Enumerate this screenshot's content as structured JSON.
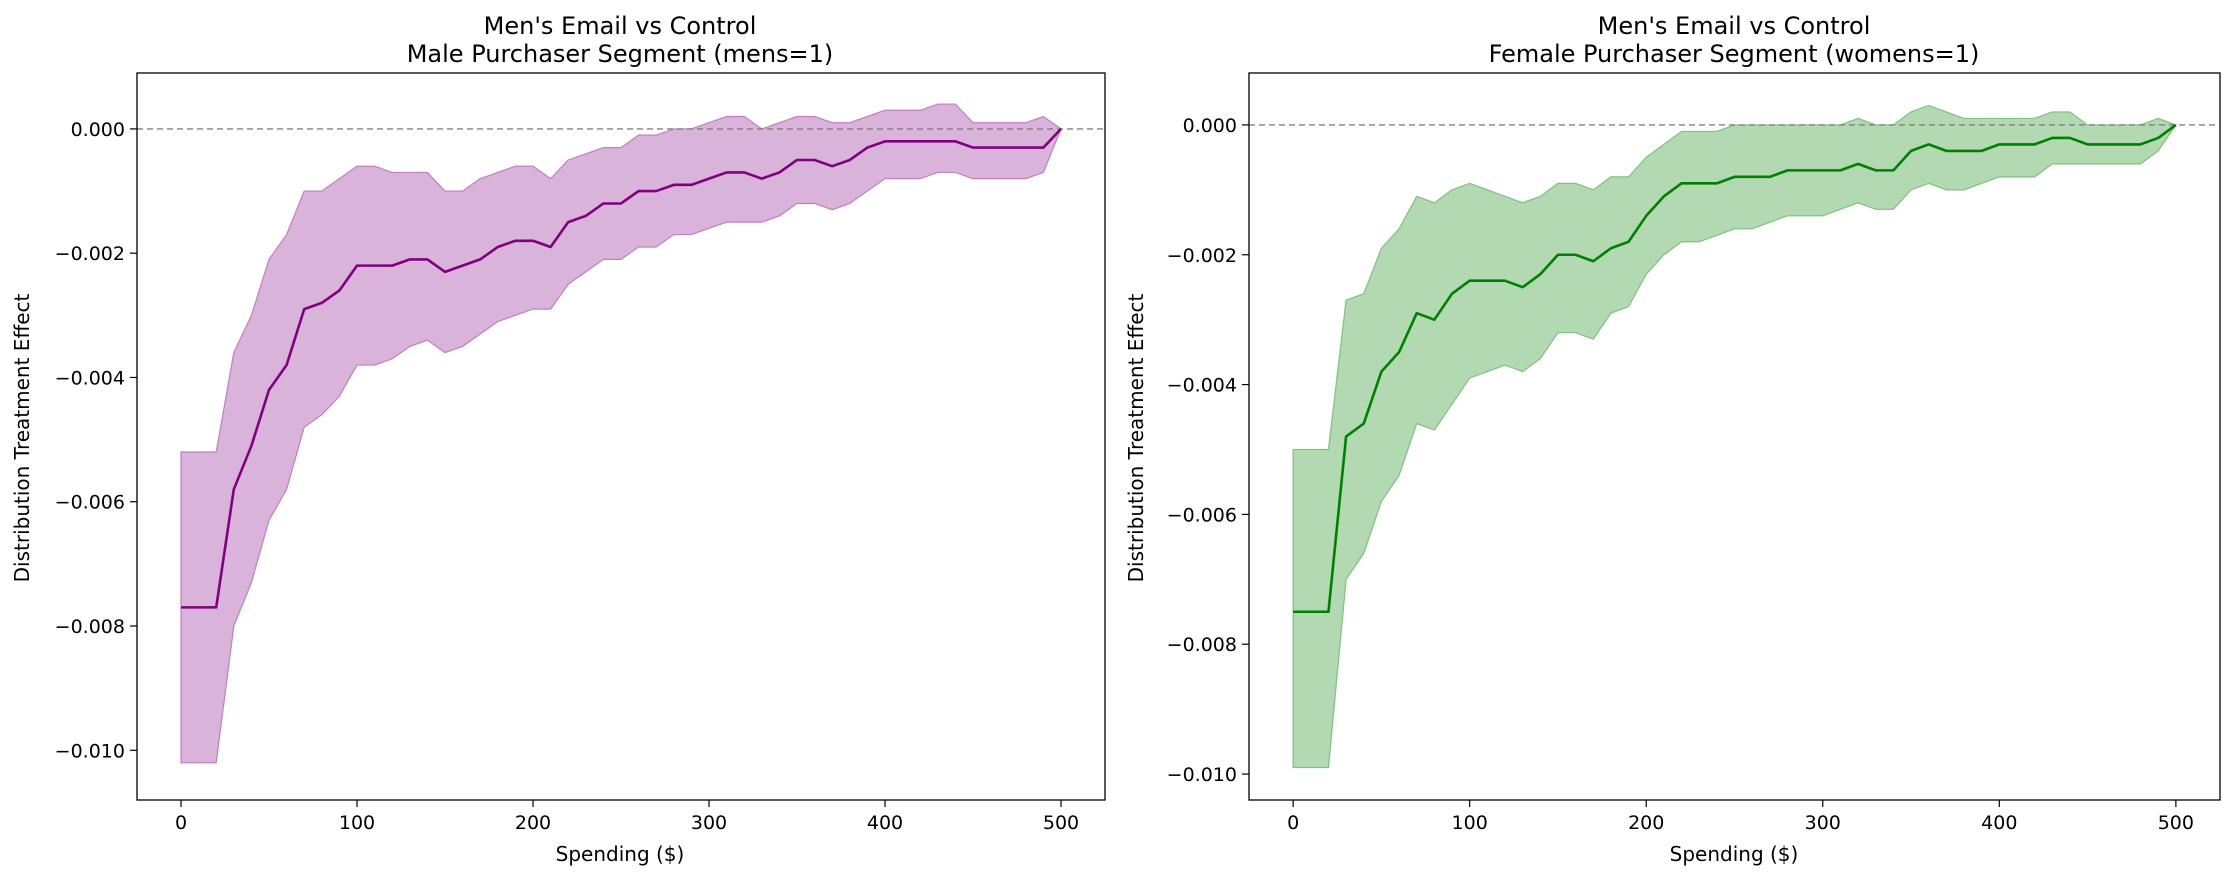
{
  "chart_data": [
    {
      "type": "line",
      "title": "Men's Email vs Control",
      "subtitle": "Male Purchaser Segment (mens=1)",
      "xlabel": "Spending ($)",
      "ylabel": "Distribution Treatment Effect",
      "xlim": [
        -25,
        525
      ],
      "ylim": [
        -0.0108,
        0.0009
      ],
      "xticks": [
        0,
        100,
        200,
        300,
        400,
        500
      ],
      "xtick_labels": [
        "0",
        "100",
        "200",
        "300",
        "400",
        "500"
      ],
      "yticks": [
        0.0,
        -0.002,
        -0.004,
        -0.006,
        -0.008,
        -0.01
      ],
      "ytick_labels": [
        "0.000",
        "−0.002",
        "−0.004",
        "−0.006",
        "−0.008",
        "−0.010"
      ],
      "reference_line": 0,
      "grid": false,
      "line_color": "#800080",
      "band_color": "#d9b3d9",
      "band_edge_color": "#bf80bf",
      "x": [
        0,
        10,
        20,
        30,
        40,
        50,
        60,
        70,
        80,
        90,
        100,
        110,
        120,
        130,
        140,
        150,
        160,
        170,
        180,
        190,
        200,
        210,
        220,
        230,
        240,
        250,
        260,
        270,
        280,
        290,
        300,
        310,
        320,
        330,
        340,
        350,
        360,
        370,
        380,
        390,
        400,
        410,
        420,
        430,
        440,
        450,
        460,
        470,
        480,
        490,
        500
      ],
      "y": [
        -0.0077,
        -0.0077,
        -0.0077,
        -0.0058,
        -0.0051,
        -0.0042,
        -0.0038,
        -0.0029,
        -0.0028,
        -0.0026,
        -0.0022,
        -0.0022,
        -0.0022,
        -0.0021,
        -0.0021,
        -0.0023,
        -0.0022,
        -0.0021,
        -0.0019,
        -0.0018,
        -0.0018,
        -0.0019,
        -0.0015,
        -0.0014,
        -0.0012,
        -0.0012,
        -0.001,
        -0.001,
        -0.0009,
        -0.0009,
        -0.0008,
        -0.0007,
        -0.0007,
        -0.0008,
        -0.0007,
        -0.0005,
        -0.0005,
        -0.0006,
        -0.0005,
        -0.0003,
        -0.0002,
        -0.0002,
        -0.0002,
        -0.0002,
        -0.0002,
        -0.0003,
        -0.0003,
        -0.0003,
        -0.0003,
        -0.0003,
        0.0
      ],
      "lower": [
        -0.0102,
        -0.0102,
        -0.0102,
        -0.008,
        -0.0073,
        -0.0063,
        -0.0058,
        -0.0048,
        -0.0046,
        -0.0043,
        -0.0038,
        -0.0038,
        -0.0037,
        -0.0035,
        -0.0034,
        -0.0036,
        -0.0035,
        -0.0033,
        -0.0031,
        -0.003,
        -0.0029,
        -0.0029,
        -0.0025,
        -0.0023,
        -0.0021,
        -0.0021,
        -0.0019,
        -0.0019,
        -0.0017,
        -0.0017,
        -0.0016,
        -0.0015,
        -0.0015,
        -0.0015,
        -0.0014,
        -0.0012,
        -0.0012,
        -0.0013,
        -0.0012,
        -0.001,
        -0.0008,
        -0.0008,
        -0.0008,
        -0.0007,
        -0.0007,
        -0.0008,
        -0.0008,
        -0.0008,
        -0.0008,
        -0.0007,
        0.0
      ],
      "upper": [
        -0.0052,
        -0.0052,
        -0.0052,
        -0.0036,
        -0.003,
        -0.0021,
        -0.0017,
        -0.001,
        -0.001,
        -0.0008,
        -0.0006,
        -0.0006,
        -0.0007,
        -0.0007,
        -0.0007,
        -0.001,
        -0.001,
        -0.0008,
        -0.0007,
        -0.0006,
        -0.0006,
        -0.0008,
        -0.0005,
        -0.0004,
        -0.0003,
        -0.0003,
        -0.0001,
        -0.0001,
        0.0,
        0.0,
        0.0001,
        0.0002,
        0.0002,
        0.0,
        0.0001,
        0.0002,
        0.0002,
        0.0001,
        0.0001,
        0.0002,
        0.0003,
        0.0003,
        0.0003,
        0.0004,
        0.0004,
        0.0001,
        0.0001,
        0.0001,
        0.0001,
        0.0002,
        0.0
      ]
    },
    {
      "type": "line",
      "title": "Men's Email vs Control",
      "subtitle": "Female Purchaser Segment (womens=1)",
      "xlabel": "Spending ($)",
      "ylabel": "Distribution Treatment Effect",
      "xlim": [
        -25,
        525
      ],
      "ylim": [
        -0.0104,
        0.0008
      ],
      "xticks": [
        0,
        100,
        200,
        300,
        400,
        500
      ],
      "xtick_labels": [
        "0",
        "100",
        "200",
        "300",
        "400",
        "500"
      ],
      "yticks": [
        0.0,
        -0.002,
        -0.004,
        -0.006,
        -0.008,
        -0.01
      ],
      "ytick_labels": [
        "0.000",
        "−0.002",
        "−0.004",
        "−0.006",
        "−0.008",
        "−0.010"
      ],
      "reference_line": 0,
      "grid": false,
      "line_color": "#008000",
      "band_color": "#b2d9b2",
      "band_edge_color": "#80c080",
      "x": [
        0,
        10,
        20,
        30,
        40,
        50,
        60,
        70,
        80,
        90,
        100,
        110,
        120,
        130,
        140,
        150,
        160,
        170,
        180,
        190,
        200,
        210,
        220,
        230,
        240,
        250,
        260,
        270,
        280,
        290,
        300,
        310,
        320,
        330,
        340,
        350,
        360,
        370,
        380,
        390,
        400,
        410,
        420,
        430,
        440,
        450,
        460,
        470,
        480,
        490,
        500
      ],
      "y": [
        -0.0075,
        -0.0075,
        -0.0075,
        -0.0048,
        -0.0046,
        -0.0038,
        -0.0035,
        -0.0029,
        -0.003,
        -0.0026,
        -0.0024,
        -0.0024,
        -0.0024,
        -0.0025,
        -0.0023,
        -0.002,
        -0.002,
        -0.0021,
        -0.0019,
        -0.0018,
        -0.0014,
        -0.0011,
        -0.0009,
        -0.0009,
        -0.0009,
        -0.0008,
        -0.0008,
        -0.0008,
        -0.0007,
        -0.0007,
        -0.0007,
        -0.0007,
        -0.0006,
        -0.0007,
        -0.0007,
        -0.0004,
        -0.0003,
        -0.0004,
        -0.0004,
        -0.0004,
        -0.0003,
        -0.0003,
        -0.0003,
        -0.0002,
        -0.0002,
        -0.0003,
        -0.0003,
        -0.0003,
        -0.0003,
        -0.0002,
        0.0
      ],
      "lower": [
        -0.0099,
        -0.0099,
        -0.0099,
        -0.007,
        -0.0066,
        -0.0058,
        -0.0054,
        -0.0046,
        -0.0047,
        -0.0043,
        -0.0039,
        -0.0038,
        -0.0037,
        -0.0038,
        -0.0036,
        -0.0032,
        -0.0032,
        -0.0033,
        -0.0029,
        -0.0028,
        -0.0023,
        -0.002,
        -0.0018,
        -0.0018,
        -0.0017,
        -0.0016,
        -0.0016,
        -0.0015,
        -0.0014,
        -0.0014,
        -0.0014,
        -0.0013,
        -0.0012,
        -0.0013,
        -0.0013,
        -0.001,
        -0.0009,
        -0.001,
        -0.001,
        -0.0009,
        -0.0008,
        -0.0008,
        -0.0008,
        -0.0006,
        -0.0006,
        -0.0006,
        -0.0006,
        -0.0006,
        -0.0006,
        -0.0004,
        0.0
      ],
      "upper": [
        -0.005,
        -0.005,
        -0.005,
        -0.0027,
        -0.0026,
        -0.0019,
        -0.0016,
        -0.0011,
        -0.0012,
        -0.001,
        -0.0009,
        -0.001,
        -0.0011,
        -0.0012,
        -0.0011,
        -0.0009,
        -0.0009,
        -0.001,
        -0.0008,
        -0.0008,
        -0.0005,
        -0.0003,
        -0.0001,
        -0.0001,
        -0.0001,
        0.0,
        0.0,
        0.0,
        0.0,
        0.0,
        0.0,
        0.0,
        0.0001,
        0.0,
        0.0,
        0.0002,
        0.0003,
        0.0002,
        0.0001,
        0.0001,
        0.0001,
        0.0001,
        0.0001,
        0.0002,
        0.0002,
        0.0,
        0.0,
        0.0,
        0.0,
        0.0001,
        0.0
      ]
    }
  ]
}
